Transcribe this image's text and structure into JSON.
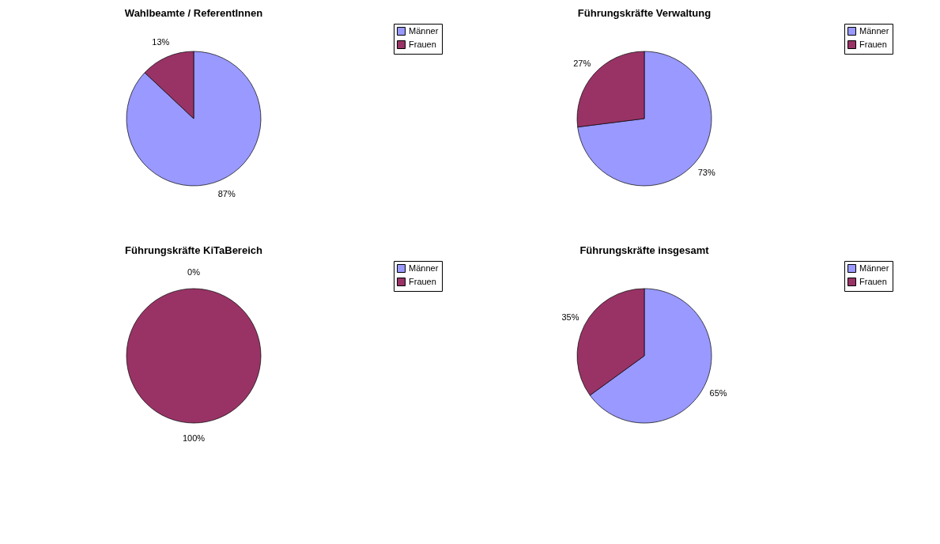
{
  "chart_data": [
    {
      "type": "pie",
      "title": "Wahlbeamte / ReferentInnen",
      "categories": [
        "Männer",
        "Frauen"
      ],
      "values": [
        87,
        13
      ],
      "colors": [
        "#9999ff",
        "#993366"
      ],
      "value_labels": [
        "87%",
        "13%"
      ],
      "legend": "right"
    },
    {
      "type": "pie",
      "title": "Führungskräfte Verwaltung",
      "categories": [
        "Männer",
        "Frauen"
      ],
      "values": [
        73,
        27
      ],
      "colors": [
        "#9999ff",
        "#993366"
      ],
      "value_labels": [
        "73%",
        "27%"
      ],
      "legend": "right"
    },
    {
      "type": "pie",
      "title": "Führungskräfte KiTaBereich",
      "categories": [
        "Männer",
        "Frauen"
      ],
      "values": [
        0,
        100
      ],
      "colors": [
        "#9999ff",
        "#993366"
      ],
      "value_labels": [
        "0%",
        "100%"
      ],
      "legend": "right"
    },
    {
      "type": "pie",
      "title": "Führungskräfte insgesamt",
      "categories": [
        "Männer",
        "Frauen"
      ],
      "values": [
        65,
        35
      ],
      "colors": [
        "#9999ff",
        "#993366"
      ],
      "value_labels": [
        "65%",
        "35%"
      ],
      "legend": "right"
    }
  ]
}
